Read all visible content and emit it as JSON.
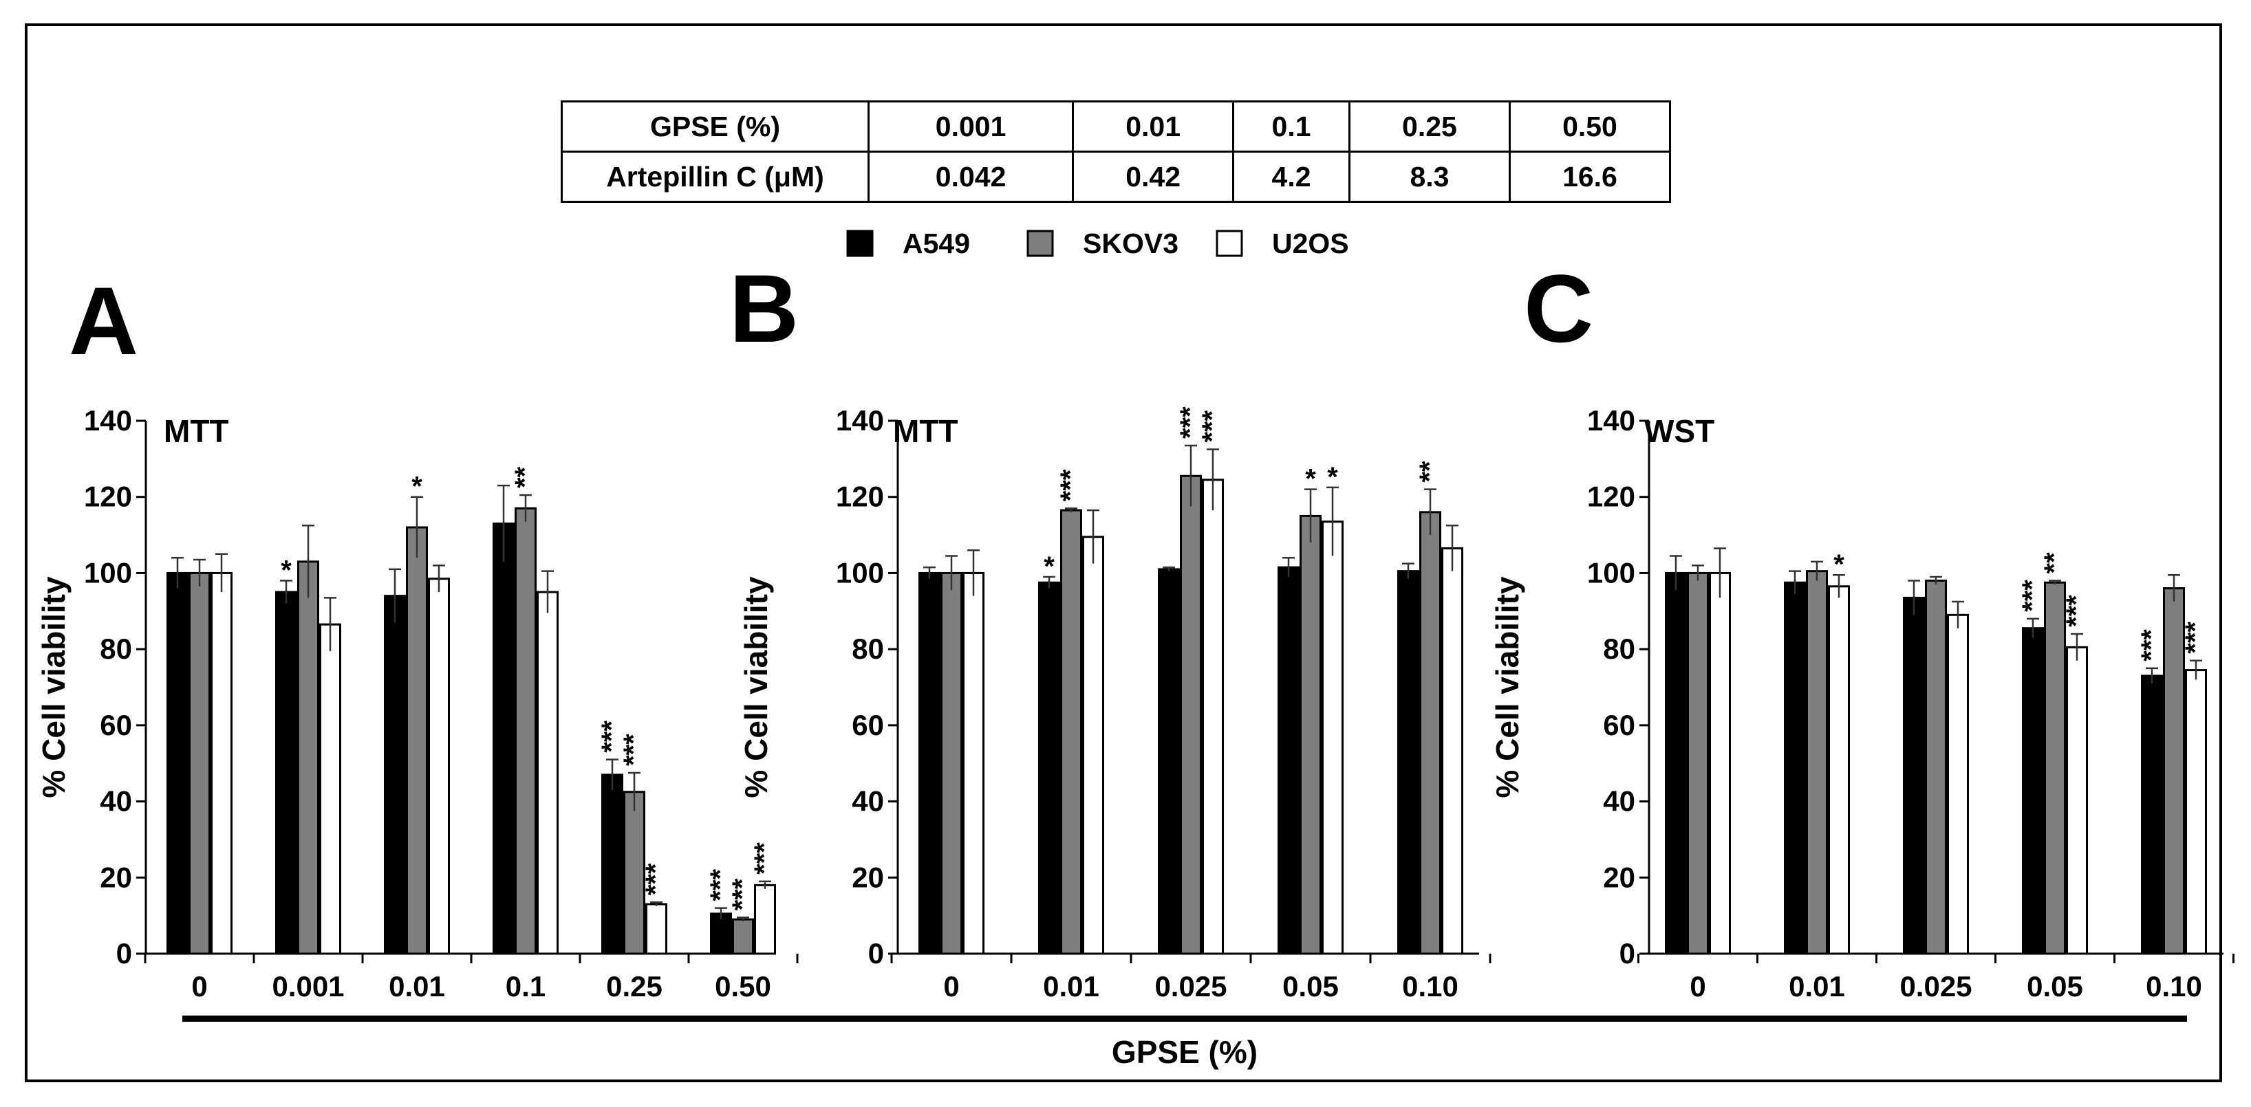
{
  "table": {
    "rows": [
      {
        "label": "GPSE (%)",
        "values": [
          "0.001",
          "0.01",
          "0.1",
          "0.25",
          "0.50"
        ]
      },
      {
        "label": "Artepillin C (μM)",
        "values": [
          "0.042",
          "0.42",
          "4.2",
          "8.3",
          "16.6"
        ]
      }
    ]
  },
  "legend": [
    {
      "name": "A549",
      "color": "#000000"
    },
    {
      "name": "SKOV3",
      "color": "#7f7f7f"
    },
    {
      "name": "U2OS",
      "color": "#ffffff"
    }
  ],
  "shared_xlabel": "GPSE (%)",
  "chart_data": [
    {
      "type": "bar",
      "panel": "A",
      "assay": "MTT",
      "ylabel": "% Cell viability",
      "ylim": [
        0,
        140
      ],
      "yticks": [
        0,
        20,
        40,
        60,
        80,
        100,
        120,
        140
      ],
      "categories": [
        "0",
        "0.001",
        "0.01",
        "0.1",
        "0.25",
        "0.50"
      ],
      "series": [
        {
          "name": "A549",
          "values": [
            100,
            95,
            94,
            113,
            47,
            10.5
          ],
          "errors": [
            4,
            3,
            7,
            10,
            4,
            1.5
          ],
          "sig": [
            "",
            "*",
            "",
            "",
            "***",
            "***"
          ]
        },
        {
          "name": "SKOV3",
          "values": [
            100,
            103,
            112,
            117,
            42.5,
            9
          ],
          "errors": [
            3.5,
            9.5,
            8,
            3.5,
            5,
            0.5
          ],
          "sig": [
            "",
            "",
            "*",
            "**",
            "***",
            "***"
          ]
        },
        {
          "name": "U2OS",
          "values": [
            100,
            86.5,
            98.5,
            95,
            13,
            18
          ],
          "errors": [
            5,
            7,
            3.5,
            5.5,
            0.5,
            1
          ],
          "sig": [
            "",
            "",
            "",
            "",
            "***",
            "***"
          ]
        }
      ]
    },
    {
      "type": "bar",
      "panel": "B",
      "assay": "MTT",
      "ylabel": "% Cell viability",
      "ylim": [
        0,
        140
      ],
      "yticks": [
        0,
        20,
        40,
        60,
        80,
        100,
        120,
        140
      ],
      "categories": [
        "0",
        "0.01",
        "0.025",
        "0.05",
        "0.10"
      ],
      "series": [
        {
          "name": "A549",
          "values": [
            100,
            97.5,
            101,
            101.5,
            100.5
          ],
          "errors": [
            1.5,
            1.5,
            0.5,
            2.5,
            2
          ],
          "sig": [
            "",
            "*",
            "",
            "",
            ""
          ]
        },
        {
          "name": "SKOV3",
          "values": [
            100,
            116.5,
            125.5,
            115,
            116
          ],
          "errors": [
            4.5,
            0.5,
            8,
            7,
            6
          ],
          "sig": [
            "",
            "***",
            "***",
            "*",
            "**"
          ]
        },
        {
          "name": "U2OS",
          "values": [
            100,
            109.5,
            124.5,
            113.5,
            106.5
          ],
          "errors": [
            6,
            7,
            8,
            9,
            6
          ],
          "sig": [
            "",
            "",
            "***",
            "*",
            ""
          ]
        }
      ]
    },
    {
      "type": "bar",
      "panel": "C",
      "assay": "WST",
      "ylabel": "% Cell viability",
      "ylim": [
        0,
        140
      ],
      "yticks": [
        0,
        20,
        40,
        60,
        80,
        100,
        120,
        140
      ],
      "categories": [
        "0",
        "0.01",
        "0.025",
        "0.05",
        "0.10"
      ],
      "series": [
        {
          "name": "A549",
          "values": [
            100,
            97.5,
            93.5,
            85.5,
            73
          ],
          "errors": [
            4.5,
            3,
            4.5,
            2.5,
            2
          ],
          "sig": [
            "",
            "",
            "",
            "***",
            "***"
          ]
        },
        {
          "name": "SKOV3",
          "values": [
            100,
            100.5,
            98,
            97.5,
            96
          ],
          "errors": [
            2,
            2.5,
            1,
            0.5,
            3.5
          ],
          "sig": [
            "",
            "",
            "",
            "**",
            ""
          ]
        },
        {
          "name": "U2OS",
          "values": [
            100,
            96.5,
            89,
            80.5,
            74.5
          ],
          "errors": [
            6.5,
            3,
            3.5,
            3.5,
            2.5
          ],
          "sig": [
            "",
            "*",
            "",
            "***",
            "***"
          ]
        }
      ]
    }
  ]
}
